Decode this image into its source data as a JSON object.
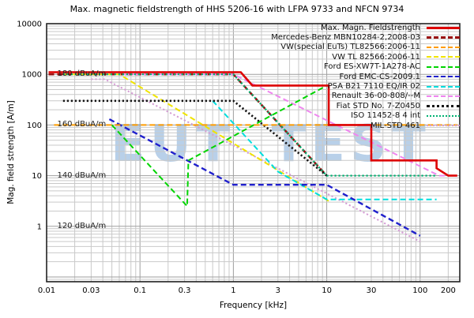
{
  "chart_data": {
    "type": "line",
    "title": "Max. magnetic fieldstrength of HHS 5206-16 with LFPA 9733 and NFCN 9734",
    "xlabel": "Frequency [kHz]",
    "ylabel": "Mag. field strength [A/m]",
    "x_log": true,
    "y_log": true,
    "xlim": [
      0.01,
      250
    ],
    "ylim": [
      0.08,
      10000
    ],
    "grid": "both-major-and-minor",
    "legend_position": "top-right",
    "watermark": "EUT TEST",
    "grid_color": "#c9c9c9",
    "decade_grid_color": "#9f9f9f",
    "frame_color": "#222222",
    "x_ticks": [
      {
        "v": 0.01,
        "label": "0.01"
      },
      {
        "v": 0.03,
        "label": "0.03"
      },
      {
        "v": 0.1,
        "label": "0.1"
      },
      {
        "v": 0.3,
        "label": "0.3"
      },
      {
        "v": 1,
        "label": "1"
      },
      {
        "v": 3,
        "label": "3"
      },
      {
        "v": 10,
        "label": "10"
      },
      {
        "v": 30,
        "label": "30"
      },
      {
        "v": 100,
        "label": "100"
      },
      {
        "v": 200,
        "label": "200"
      }
    ],
    "y_ticks": [
      {
        "v": 10000,
        "label": "10000"
      },
      {
        "v": 1000,
        "label": "1000"
      },
      {
        "v": 100,
        "label": "100"
      },
      {
        "v": 10,
        "label": "10"
      },
      {
        "v": 1,
        "label": "1"
      }
    ],
    "annotations": [
      {
        "text": "180 dBuA/m",
        "f": 0.013,
        "v": 1000
      },
      {
        "text": "160 dBuA/m",
        "f": 0.013,
        "v": 100
      },
      {
        "text": "140 dBuA/m",
        "f": 0.013,
        "v": 10
      },
      {
        "text": "120 dBuA/m",
        "f": 0.013,
        "v": 1
      }
    ],
    "series": [
      {
        "id": "max-magn-fieldstrength",
        "label": "Max. Magn. Fieldstrength",
        "color": "#dd0000",
        "dash": "solid",
        "width": 2.6,
        "z": 11,
        "points": [
          [
            0.0105,
            1100
          ],
          [
            1.2,
            1100
          ],
          [
            1.6,
            600
          ],
          [
            10.5,
            600
          ],
          [
            10.5,
            100
          ],
          [
            30,
            100
          ],
          [
            30,
            20
          ],
          [
            150,
            20
          ],
          [
            150,
            14
          ],
          [
            200,
            10
          ],
          [
            250,
            10
          ]
        ]
      },
      {
        "id": "mercedes-mbn10284",
        "label": "Mercedes-Benz MBN10284-2,2008-03",
        "color": "#991111",
        "dash": "dashed",
        "width": 2.6,
        "z": 1,
        "points": [
          [
            0.0105,
            1000
          ],
          [
            1,
            1000
          ],
          [
            10,
            10
          ]
        ]
      },
      {
        "id": "vw-special-tl82566",
        "label": "VW(special EuTs) TL82566:2006-11",
        "color": "#ff9c00",
        "dash": "dashed",
        "width": 2,
        "z": 10,
        "points": [
          [
            0.012,
            100
          ],
          [
            250,
            100
          ]
        ]
      },
      {
        "id": "vw-tl82566",
        "label": "VW TL 82566:2006-11",
        "color": "#f0e400",
        "dash": "dashed",
        "width": 2,
        "z": 4,
        "points": [
          [
            0.015,
            1000
          ],
          [
            0.06,
            1000
          ],
          [
            11,
            3
          ]
        ]
      },
      {
        "id": "ford-es-xw7t",
        "label": "Ford ES-XW7T-1A278-AC",
        "color": "#00d400",
        "dash": "dashed",
        "width": 2,
        "z": 8,
        "points": [
          [
            0.05,
            100
          ],
          [
            0.32,
            2.5
          ],
          [
            0.33,
            20
          ],
          [
            10,
            600
          ]
        ]
      },
      {
        "id": "ford-emc-cs",
        "label": "Ford EMC-CS-2009.1",
        "color": "#2020cc",
        "dash": "dashed",
        "width": 2.4,
        "z": 6,
        "points": [
          [
            0.047,
            130
          ],
          [
            1,
            6.6
          ],
          [
            10,
            6.6
          ],
          [
            100,
            0.65
          ]
        ]
      },
      {
        "id": "psa-b21-7110",
        "label": "PSA B21 7110 EQ/IR 02",
        "color": "#00dede",
        "dash": "dashed",
        "width": 2,
        "z": 5,
        "points": [
          [
            0.6,
            300
          ],
          [
            3,
            12
          ],
          [
            10,
            3.4
          ],
          [
            150,
            3.4
          ]
        ]
      },
      {
        "id": "renault-36-00-808",
        "label": "Renault 36-00-808/--M",
        "color": "#ef86ef",
        "dash": "dashed",
        "width": 2,
        "z": 2,
        "points": [
          [
            0.015,
            1000
          ],
          [
            1,
            1000
          ],
          [
            160,
            10
          ],
          [
            215,
            10
          ]
        ]
      },
      {
        "id": "fiat-std-7-z0450",
        "label": "Fiat STD No. 7-Z0450",
        "color": "#151515",
        "dash": "dotted",
        "width": 2.6,
        "z": 7,
        "points": [
          [
            0.015,
            300
          ],
          [
            1,
            300
          ],
          [
            10,
            10
          ]
        ]
      },
      {
        "id": "iso-11452-8",
        "label": "ISO 11452-8 4 int",
        "color": "#00b272",
        "dash": "dotted",
        "width": 2.2,
        "z": 9,
        "points": [
          [
            0.015,
            1000
          ],
          [
            1,
            1000
          ],
          [
            10,
            10
          ],
          [
            150,
            10
          ]
        ]
      },
      {
        "id": "mil-std-461",
        "label": "MIL-STD 461",
        "color": "#d49cd4",
        "dash": "dotted",
        "width": 2,
        "z": 3,
        "points": [
          [
            0.03,
            800
          ],
          [
            0.042,
            800
          ],
          [
            100,
            0.5
          ]
        ]
      }
    ]
  }
}
